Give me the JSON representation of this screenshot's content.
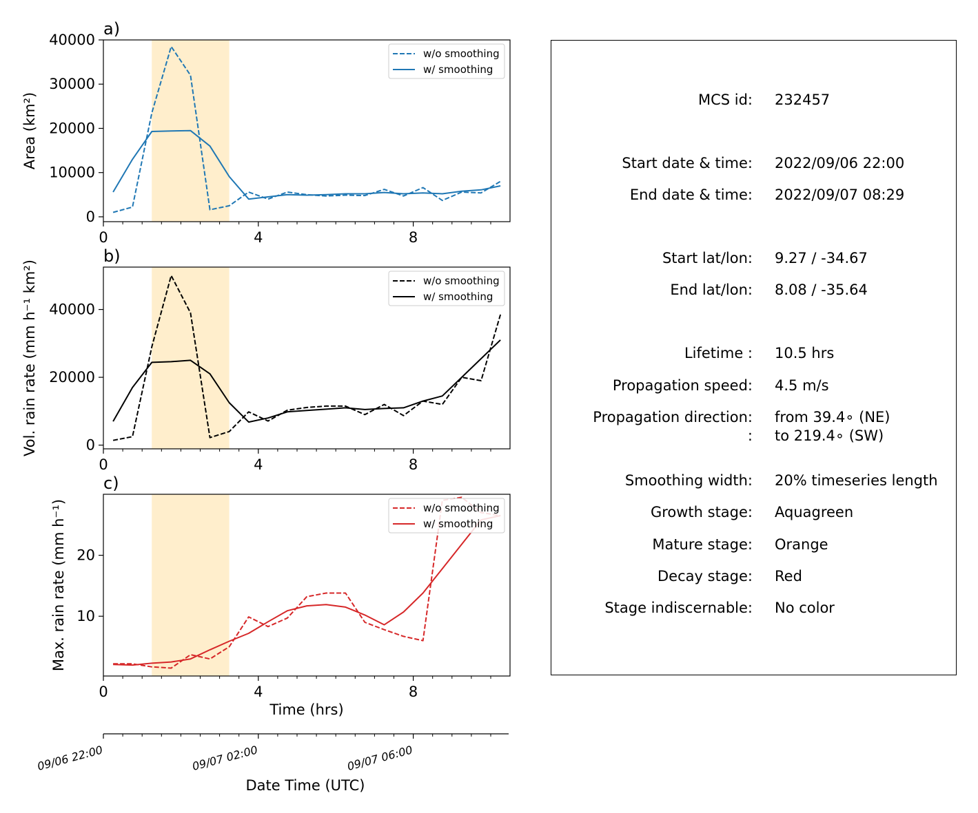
{
  "chart_data": [
    {
      "type": "line",
      "panel_label": "a)",
      "ylabel": "Area  (km²)",
      "xlim": [
        0,
        10.5
      ],
      "ylim": [
        -1100,
        40000
      ],
      "xticks": [
        0,
        4,
        8
      ],
      "yticks": [
        0,
        10000,
        20000,
        30000,
        40000
      ],
      "highlight_band": {
        "x0": 1.25,
        "x1": 3.25,
        "color": "#ffeecc"
      },
      "legend": "upper right",
      "series": [
        {
          "name": "w/o smoothing",
          "style": "dashed",
          "color": "#1f77b4",
          "x": [
            0.25,
            0.75,
            1.25,
            1.75,
            2.25,
            2.75,
            3.25,
            3.75,
            4.25,
            4.75,
            5.25,
            5.75,
            6.25,
            6.75,
            7.25,
            7.75,
            8.25,
            8.75,
            9.25,
            9.75,
            10.25
          ],
          "y": [
            1000,
            2200,
            23500,
            38500,
            32000,
            1600,
            2500,
            5600,
            4000,
            5600,
            5000,
            4700,
            4900,
            4800,
            6200,
            4700,
            6600,
            3700,
            5600,
            5400,
            8000
          ]
        },
        {
          "name": "w/ smoothing",
          "style": "solid",
          "color": "#1f77b4",
          "x": [
            0.25,
            0.75,
            1.25,
            1.75,
            2.25,
            2.75,
            3.25,
            3.75,
            4.25,
            4.75,
            5.25,
            5.75,
            6.25,
            6.75,
            7.25,
            7.75,
            8.25,
            8.75,
            9.25,
            9.75,
            10.25
          ],
          "y": [
            5600,
            13000,
            19300,
            19400,
            19500,
            16000,
            9100,
            4000,
            4500,
            5000,
            4900,
            5000,
            5200,
            5200,
            5500,
            5200,
            5400,
            5200,
            5800,
            6100,
            7000
          ]
        }
      ]
    },
    {
      "type": "line",
      "panel_label": "b)",
      "ylabel": "Vol. rain rate (mm h⁻¹ km²)",
      "xlim": [
        0,
        10.5
      ],
      "ylim": [
        -1100,
        52500
      ],
      "xticks": [
        0,
        4,
        8
      ],
      "yticks": [
        0,
        20000,
        40000
      ],
      "highlight_band": {
        "x0": 1.25,
        "x1": 3.25,
        "color": "#ffeecc"
      },
      "legend": "upper right",
      "series": [
        {
          "name": "w/o smoothing",
          "style": "dashed",
          "color": "#000000",
          "x": [
            0.25,
            0.75,
            1.25,
            1.75,
            2.25,
            2.75,
            3.25,
            3.75,
            4.25,
            4.75,
            5.25,
            5.75,
            6.25,
            6.75,
            7.25,
            7.75,
            8.25,
            8.75,
            9.25,
            9.75,
            10.25
          ],
          "y": [
            1400,
            2500,
            29000,
            50000,
            39000,
            2200,
            4000,
            9800,
            7100,
            10300,
            11100,
            11500,
            11500,
            9000,
            12000,
            8700,
            13000,
            12000,
            20000,
            19000,
            38500
          ]
        },
        {
          "name": "w/ smoothing",
          "style": "solid",
          "color": "#000000",
          "x": [
            0.25,
            0.75,
            1.25,
            1.75,
            2.25,
            2.75,
            3.25,
            3.75,
            4.25,
            4.75,
            5.25,
            5.75,
            6.25,
            6.75,
            7.25,
            7.75,
            8.25,
            8.75,
            9.25,
            9.75,
            10.25
          ],
          "y": [
            7000,
            17000,
            24400,
            24600,
            25000,
            21000,
            12500,
            6800,
            8000,
            9800,
            10200,
            10600,
            11000,
            10500,
            10800,
            11000,
            13000,
            14500,
            20000,
            25500,
            31000
          ]
        }
      ]
    },
    {
      "type": "line",
      "panel_label": "c)",
      "ylabel": "Max. rain rate  (mm h⁻¹)",
      "xlabel": "Time (hrs)",
      "xlim": [
        0,
        10.5
      ],
      "ylim": [
        0.2,
        30
      ],
      "xticks": [
        0,
        4,
        8
      ],
      "yticks": [
        10,
        20
      ],
      "highlight_band": {
        "x0": 1.25,
        "x1": 3.25,
        "color": "#ffeecc"
      },
      "legend": "upper right",
      "series": [
        {
          "name": "w/o smoothing",
          "style": "dashed",
          "color": "#d62728",
          "x": [
            0.25,
            0.75,
            1.25,
            1.75,
            2.25,
            2.75,
            3.25,
            3.75,
            4.25,
            4.75,
            5.25,
            5.75,
            6.25,
            6.75,
            7.25,
            7.75,
            8.25,
            8.75,
            9.25,
            9.75,
            10.25
          ],
          "y": [
            2.2,
            2.2,
            1.7,
            1.5,
            3.7,
            3.0,
            5.0,
            9.9,
            8.3,
            9.7,
            13.2,
            13.8,
            13.8,
            9.0,
            7.8,
            6.7,
            6.0,
            29.0,
            29.5,
            27.0,
            26.5
          ]
        },
        {
          "name": "w/ smoothing",
          "style": "solid",
          "color": "#d62728",
          "x": [
            0.25,
            0.75,
            1.25,
            1.75,
            2.25,
            2.75,
            3.25,
            3.75,
            4.25,
            4.75,
            5.25,
            5.75,
            6.25,
            6.75,
            7.25,
            7.75,
            8.25,
            8.75,
            9.25,
            9.75,
            10.25
          ],
          "y": [
            2.1,
            2.0,
            2.3,
            2.5,
            3.0,
            4.5,
            5.9,
            7.2,
            9.1,
            10.9,
            11.7,
            11.9,
            11.5,
            10.2,
            8.6,
            10.7,
            13.8,
            17.8,
            21.8,
            25.8,
            26.5
          ]
        }
      ]
    }
  ],
  "datetime_axis": {
    "xlabel": "Date Time (UTC)",
    "tick_labels": [
      {
        "t": 0,
        "label": "09/06 22:00"
      },
      {
        "t": 4,
        "label": "09/07 02:00"
      },
      {
        "t": 8,
        "label": "09/07 06:00"
      }
    ],
    "minor_ticks": [
      0.5,
      1,
      1.5,
      2,
      2.5,
      3,
      3.5,
      4.5,
      5,
      5.5,
      6,
      6.5,
      7,
      7.5,
      8.5,
      9,
      9.5,
      10
    ]
  },
  "minor_xticks": [
    0.5,
    1,
    1.5,
    2,
    2.5,
    3,
    3.5,
    4.5,
    5,
    5.5,
    6,
    6.5,
    7,
    7.5,
    8.5,
    9,
    9.5,
    10
  ],
  "legend_labels": {
    "dashed": "w/o smoothing",
    "solid": "w/ smoothing"
  },
  "info": {
    "rows": [
      {
        "label": "MCS id:",
        "value": "232457"
      },
      {
        "label": "Start date & time:",
        "value": "2022/09/06 22:00"
      },
      {
        "label": "End date & time:",
        "value": "2022/09/07 08:29"
      },
      {
        "label": "Start lat/lon:",
        "value": "9.27 / -34.67"
      },
      {
        "label": "End lat/lon:",
        "value": "8.08 / -35.64"
      },
      {
        "label": "Lifetime :",
        "value": "10.5 hrs"
      },
      {
        "label": "Propagation speed:",
        "value": "4.5 m/s"
      },
      {
        "label": "Propagation direction:",
        "value": "from  39.4∘ (NE)"
      },
      {
        "label": ":",
        "value": "to   219.4∘ (SW)"
      },
      {
        "label": "Smoothing width:",
        "value": "20% timeseries length"
      },
      {
        "label": "Growth stage:",
        "value": "Aquagreen"
      },
      {
        "label": "Mature stage:",
        "value": "Orange"
      },
      {
        "label": "Decay stage:",
        "value": "Red"
      },
      {
        "label": "Stage indiscernable:",
        "value": "No color"
      }
    ]
  }
}
